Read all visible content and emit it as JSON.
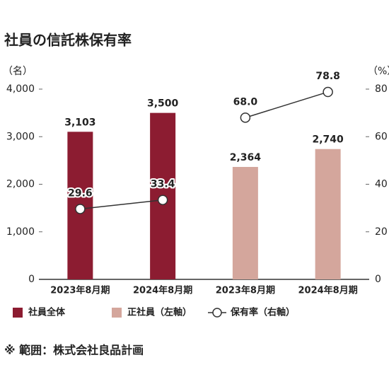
{
  "chart_data": {
    "type": "bar",
    "title": "社員の信託株保有率",
    "y_label": "（名）",
    "y2_label": "（%）",
    "categories": [
      "2023年8月期",
      "2024年8月期",
      "2023年8月期",
      "2024年8月期"
    ],
    "series": [
      {
        "name": "社員全体",
        "type": "bar",
        "color": "#8c1c31",
        "values": [
          3103,
          3500,
          null,
          null
        ],
        "value_labels": [
          "3,103",
          "3,500",
          null,
          null
        ]
      },
      {
        "name": "正社員（左軸）",
        "type": "bar",
        "color": "#d4a69c",
        "values": [
          null,
          null,
          2364,
          2740
        ],
        "value_labels": [
          null,
          null,
          "2,364",
          "2,740"
        ]
      },
      {
        "name": "保有率（右軸）",
        "type": "line",
        "axis": "y2",
        "color": "#333333",
        "values": [
          29.6,
          33.4,
          68.0,
          78.8
        ],
        "value_labels": [
          "29.6",
          "33.4",
          "68.0",
          "78.8"
        ]
      }
    ],
    "ylim": [
      0,
      4000
    ],
    "yticks": [
      0,
      {
        "value": 1000,
        "label": "1,000"
      },
      {
        "value": 2000,
        "label": "2,000"
      },
      {
        "value": 3000,
        "label": "3,000"
      },
      {
        "value": 4000,
        "label": "4,000"
      }
    ],
    "y2lim": [
      0,
      80
    ],
    "y2ticks": [
      0,
      20,
      40,
      60,
      80
    ],
    "grid": false,
    "footnote": "※ 範囲：株式会社良品計画"
  }
}
